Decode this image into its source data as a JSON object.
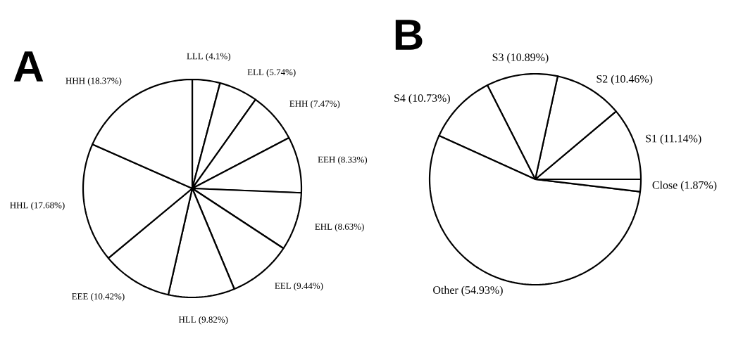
{
  "chart_data": [
    {
      "type": "pie",
      "title": "A",
      "categories": [
        "LLL (4.1%)",
        "ELL (5.74%)",
        "EHH (7.47%)",
        "EEH (8.33%)",
        "EHL (8.63%)",
        "EEL (9.44%)",
        "HLL (9.82%)",
        "EEE (10.42%)",
        "HHL (17.68%)",
        "HHH (18.37%)"
      ],
      "values": [
        4.1,
        5.74,
        7.47,
        8.33,
        8.63,
        9.44,
        9.82,
        10.42,
        17.68,
        18.37
      ],
      "colors": [
        "#ffffff",
        "#ffffff",
        "#ffffff",
        "#ffffff",
        "#ffffff",
        "#ffffff",
        "#ffffff",
        "#ffffff",
        "#ffffff",
        "#ffffff"
      ]
    },
    {
      "type": "pie",
      "title": "B",
      "categories": [
        "S1 (11.14%)",
        "S2 (10.46%)",
        "S3 (10.89%)",
        "S4 (10.73%)",
        "Other (54.93%)",
        "Close (1.87%)"
      ],
      "values": [
        11.14,
        10.46,
        10.89,
        10.73,
        54.93,
        1.87
      ],
      "colors": [
        "#ffffff",
        "#ffffff",
        "#ffffff",
        "#ffffff",
        "#ffffff",
        "#ffffff"
      ]
    }
  ]
}
